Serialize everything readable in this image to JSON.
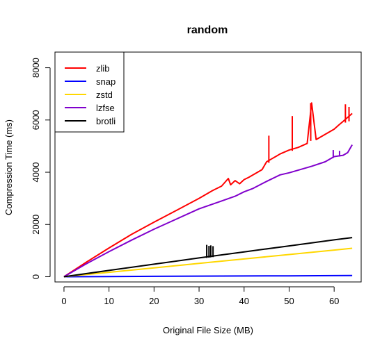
{
  "chart_data": {
    "type": "line",
    "title": "random",
    "xlabel": "Original File Size (MB)",
    "ylabel": "Compression Time (ms)",
    "xlim": [
      -2,
      66
    ],
    "ylim": [
      -200,
      8600
    ],
    "xticks": [
      0,
      10,
      20,
      30,
      40,
      50,
      60
    ],
    "yticks": [
      0,
      2000,
      4000,
      6000,
      8000
    ],
    "grid": false,
    "legend_position": "top-left",
    "series": [
      {
        "name": "zlib",
        "color": "#FF0000",
        "x": [
          0,
          5,
          10,
          15,
          20,
          25,
          30,
          33,
          35,
          36.5,
          37,
          38,
          39,
          40,
          41,
          42,
          43,
          44,
          45,
          45.5,
          46,
          47,
          48,
          50,
          52,
          54,
          55,
          56,
          58,
          60,
          61,
          62,
          63,
          64
        ],
        "y": [
          0,
          560,
          1100,
          1620,
          2090,
          2540,
          3000,
          3300,
          3470,
          3760,
          3520,
          3680,
          3560,
          3720,
          3800,
          3900,
          4000,
          4100,
          4400,
          4450,
          4500,
          4600,
          4700,
          4850,
          4950,
          5100,
          6650,
          5250,
          5450,
          5650,
          5800,
          5950,
          6100,
          6250
        ],
        "spikes": [
          [
            45.5,
            4360,
            5400
          ],
          [
            50.7,
            4820,
            6150
          ],
          [
            54.8,
            5200,
            6650
          ],
          [
            62.5,
            5900,
            6600
          ],
          [
            63.3,
            5950,
            6500
          ]
        ]
      },
      {
        "name": "snap",
        "color": "#0000FF",
        "x": [
          0,
          10,
          20,
          30,
          40,
          50,
          60,
          64
        ],
        "y": [
          0,
          8,
          15,
          22,
          28,
          35,
          42,
          45
        ],
        "spikes": []
      },
      {
        "name": "zstd",
        "color": "#FFD700",
        "x": [
          0,
          10,
          20,
          30,
          40,
          50,
          60,
          64
        ],
        "y": [
          0,
          170,
          340,
          510,
          680,
          850,
          1020,
          1090
        ],
        "spikes": []
      },
      {
        "name": "lzfse",
        "color": "#8000CC",
        "x": [
          0,
          5,
          10,
          15,
          20,
          25,
          30,
          33,
          35,
          38,
          40,
          42,
          45,
          48,
          50,
          55,
          58,
          60,
          62,
          63,
          64
        ],
        "y": [
          0,
          500,
          960,
          1400,
          1820,
          2210,
          2600,
          2780,
          2900,
          3080,
          3250,
          3380,
          3650,
          3900,
          3980,
          4230,
          4400,
          4600,
          4650,
          4750,
          5050
        ],
        "spikes": [
          [
            59.8,
            4550,
            4850
          ],
          [
            61.2,
            4600,
            4820
          ]
        ]
      },
      {
        "name": "brotli",
        "color": "#000000",
        "x": [
          0,
          10,
          20,
          30,
          40,
          50,
          60,
          64
        ],
        "y": [
          0,
          240,
          480,
          720,
          950,
          1180,
          1410,
          1500
        ],
        "spikes": [
          [
            31.7,
            720,
            1220
          ],
          [
            32.2,
            730,
            1180
          ],
          [
            32.6,
            740,
            1200
          ],
          [
            33.1,
            750,
            1170
          ]
        ]
      }
    ]
  }
}
